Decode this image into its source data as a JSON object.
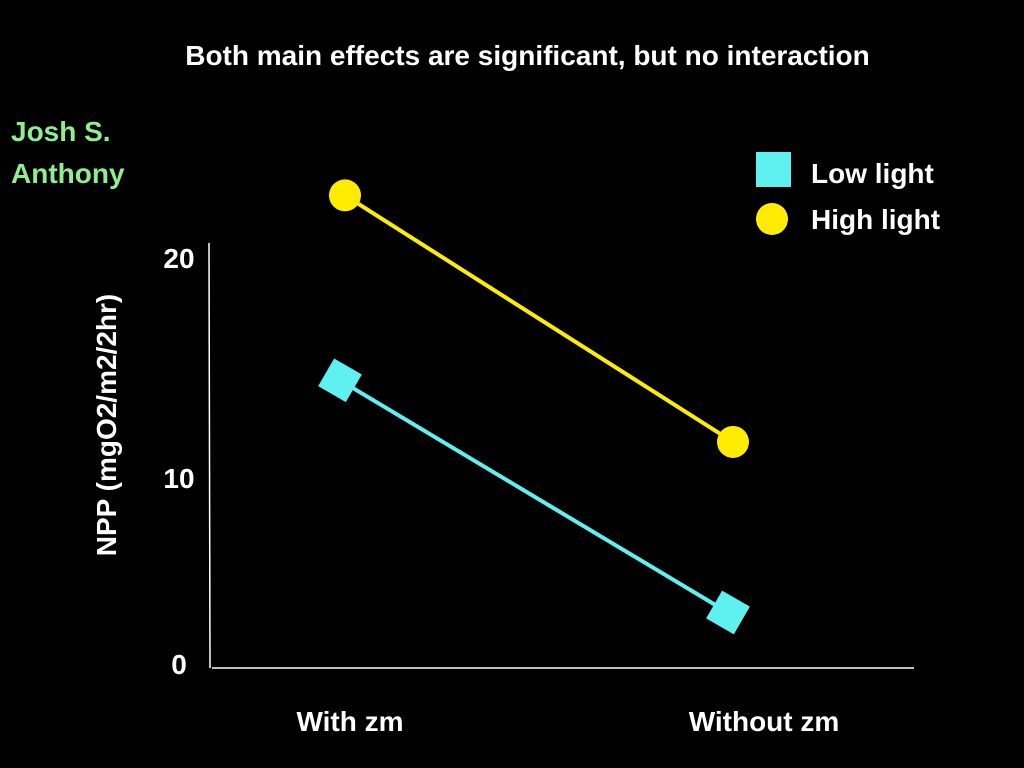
{
  "slide": {
    "title": "Both main effects are significant, but no interaction",
    "author_line1": "Josh S.",
    "author_line2": "Anthony"
  },
  "colors": {
    "background": "#000000",
    "text": "#ffffff",
    "author": "#90ee90",
    "axis": "#ffffff",
    "low_light": "#5ff0f0",
    "high_light": "#ffec00"
  },
  "chart_data": {
    "type": "line",
    "title": "Both main effects are significant, but no interaction",
    "xlabel": "",
    "ylabel": "NPP (mgO2/m2/2hr)",
    "categories": [
      "With zm",
      "Without zm"
    ],
    "ylim": [
      0,
      20
    ],
    "yticks": [
      0,
      10,
      20
    ],
    "grid": false,
    "legend_position": "top-right",
    "series": [
      {
        "name": "Low light",
        "marker": "square",
        "color": "#5ff0f0",
        "values": [
          14,
          2.7
        ]
      },
      {
        "name": "High light",
        "marker": "circle",
        "color": "#ffec00",
        "values": [
          23,
          11
        ]
      }
    ]
  }
}
